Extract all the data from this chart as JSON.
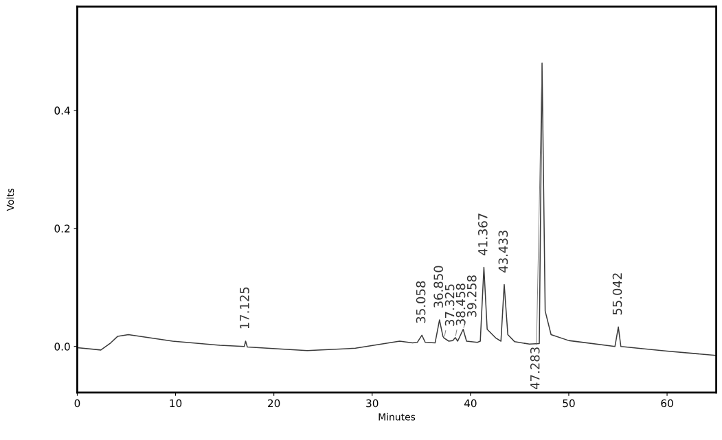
{
  "chart_data": {
    "type": "line",
    "xlabel": "Minutes",
    "ylabel": "Volts",
    "x": [
      0,
      2.4,
      3.4,
      4.1,
      5.2,
      9.7,
      14.5,
      17.0,
      17.125,
      17.3,
      23.4,
      28.3,
      31.7,
      32.8,
      34.1,
      34.6,
      35.058,
      35.4,
      36.4,
      36.85,
      37.2,
      37.325,
      37.8,
      38.2,
      38.458,
      38.7,
      39.258,
      39.6,
      40.7,
      41.0,
      41.367,
      41.7,
      42.6,
      43.1,
      43.433,
      43.8,
      44.5,
      46.0,
      47.0,
      47.283,
      47.6,
      48.2,
      50.0,
      54.7,
      55.042,
      55.3,
      60.0,
      64.9
    ],
    "series": [
      {
        "color": "#3a3a3a",
        "values": [
          -0.002,
          -0.006,
          0.006,
          0.017,
          0.02,
          0.009,
          0.002,
          0.0,
          0.009,
          -0.001,
          -0.007,
          -0.003,
          0.006,
          0.009,
          0.006,
          0.007,
          0.019,
          0.007,
          0.006,
          0.045,
          0.017,
          0.014,
          0.009,
          0.01,
          0.015,
          0.009,
          0.029,
          0.009,
          0.007,
          0.009,
          0.134,
          0.029,
          0.014,
          0.009,
          0.105,
          0.02,
          0.008,
          0.004,
          0.005,
          0.48,
          0.06,
          0.02,
          0.01,
          0.0,
          0.033,
          0.0,
          -0.008,
          -0.015
        ]
      }
    ],
    "annotations": [
      {
        "text": "17.125",
        "x": 17.125,
        "y": 0.009
      },
      {
        "text": "35.058",
        "x": 35.058,
        "y": 0.019
      },
      {
        "text": "36.850",
        "x": 36.85,
        "y": 0.045
      },
      {
        "text": "37.325",
        "x": 37.325,
        "y": 0.014
      },
      {
        "text": "38.458",
        "x": 38.458,
        "y": 0.015
      },
      {
        "text": "39.258",
        "x": 39.258,
        "y": 0.029
      },
      {
        "text": "41.367",
        "x": 41.367,
        "y": 0.134
      },
      {
        "text": "43.433",
        "x": 43.433,
        "y": 0.105
      },
      {
        "text": "47.283",
        "x": 47.283,
        "y": 0.48
      },
      {
        "text": "55.042",
        "x": 55.042,
        "y": 0.033
      }
    ],
    "xlim": [
      0,
      65
    ],
    "ylim": [
      -0.078,
      0.576
    ],
    "xticks": [
      0,
      10,
      20,
      30,
      40,
      50,
      60
    ],
    "yticks": [
      {
        "value": 0,
        "label": "0.0"
      },
      {
        "value": 0.2,
        "label": "0.2"
      },
      {
        "value": 0.4,
        "label": "0.4"
      }
    ],
    "grid": false,
    "legend": false,
    "marker": "none",
    "line_style": "solid"
  }
}
